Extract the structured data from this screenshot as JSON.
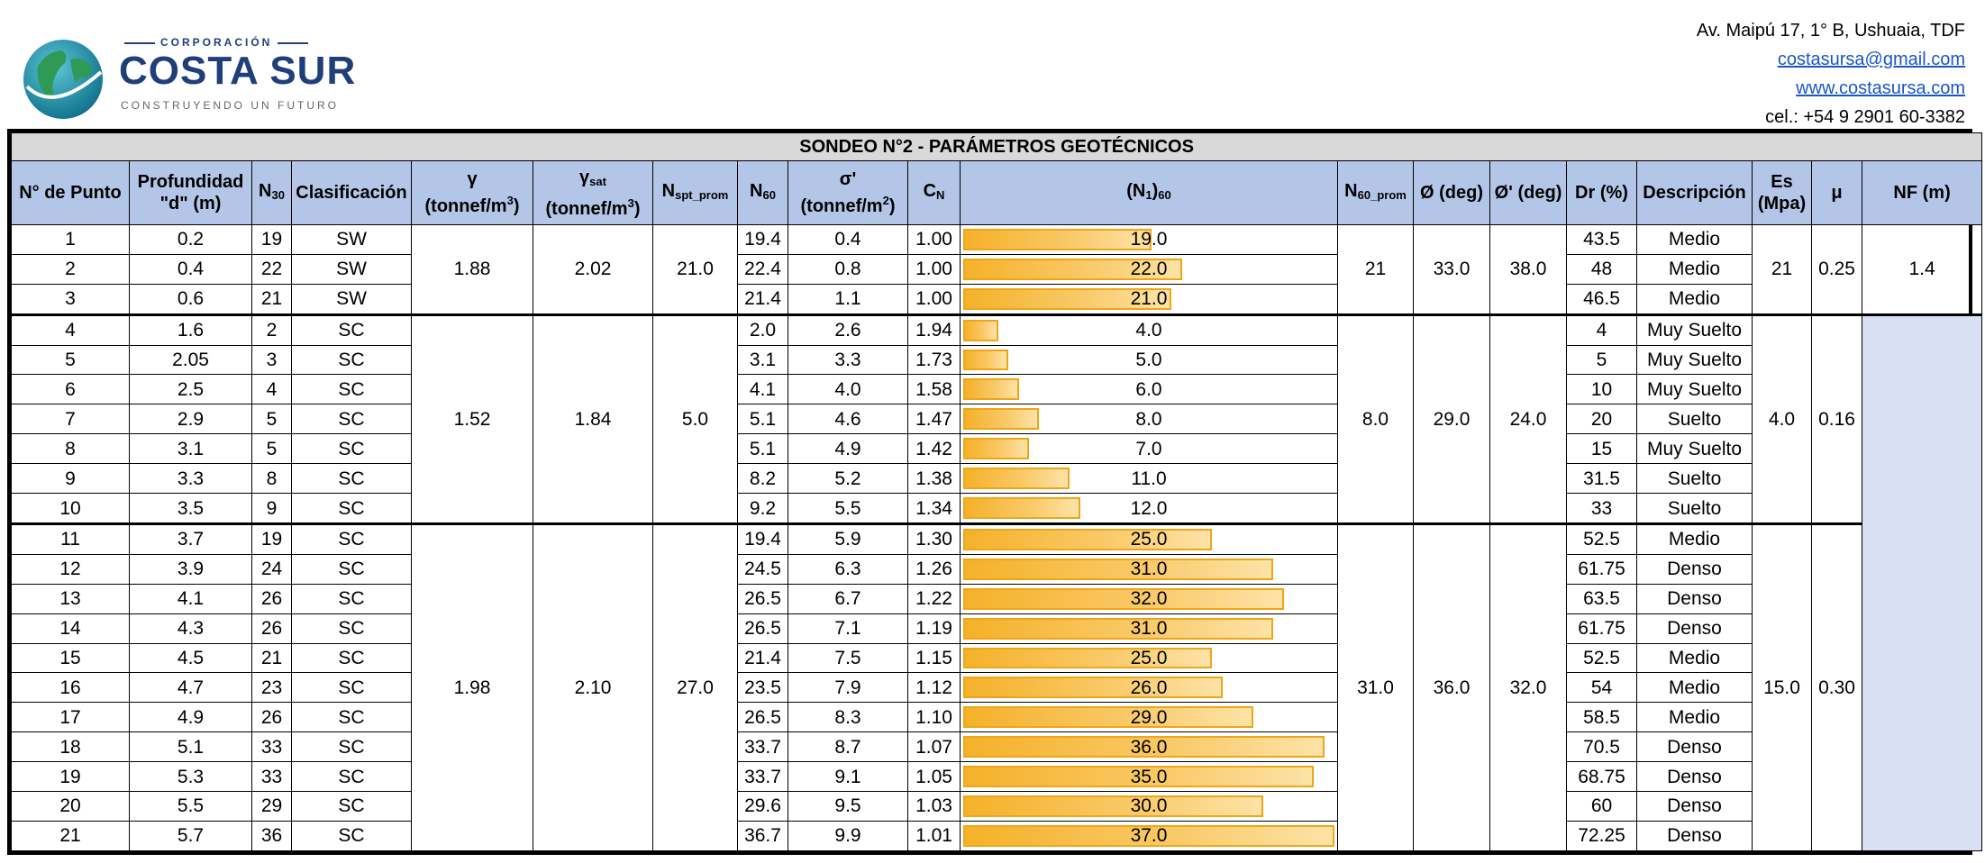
{
  "header": {
    "logo_small": "CORPORACIÓN",
    "logo_big": "COSTA SUR",
    "logo_tag": "CONSTRUYENDO UN FUTURO",
    "address": "Av. Maipú 17, 1° B, Ushuaia, TDF",
    "email": "costasursa@gmail.com",
    "web": "www.costasursa.com",
    "phone": "cel.: +54 9 2901 60-3382"
  },
  "colors": {
    "header_bg": "#b4c6e7",
    "title_bg": "#d9d9d9",
    "bar": "#f5b129",
    "nf_fill": "#d9e0f3",
    "brand": "#1f3f78"
  },
  "table": {
    "title": "SONDEO N°2 - PARÁMETROS GEOTÉCNICOS",
    "headers": {
      "punto": "N° de Punto",
      "prof_1": "Profundidad",
      "prof_2": "\"d\" (m)",
      "n30": "N",
      "n30_sub": "30",
      "clasif": "Clasificación",
      "gamma_1": "γ",
      "gamma_2": "(tonnef/m",
      "gamma_sup": "3",
      "gsat_1": "γ",
      "gsat_sub": "sat",
      "gsat_2": "(tonnef/m",
      "gsat_sup": "3",
      "nspt": "N",
      "nspt_sub": "spt_prom",
      "n60": "N",
      "n60_sub": "60",
      "sigma_1": "σ'",
      "sigma_2": "(tonnef/m",
      "sigma_sup": "2",
      "cn": "C",
      "cn_sub": "N",
      "n160": "(N",
      "n160_sub1": "1",
      "n160_mid": ")",
      "n160_sub2": "60",
      "n60prom": "N",
      "n60prom_sub": "60_prom",
      "phi": "Ø (deg)",
      "phip": "Ø' (deg)",
      "dr": "Dr (%)",
      "desc": "Descripción",
      "es_1": "Es",
      "es_2": "(Mpa)",
      "mu": "μ",
      "nf": "NF (m)"
    },
    "rows": [
      {
        "punto": "1",
        "prof": "0.2",
        "n30": "19",
        "clas": "SW",
        "n60": "19.4",
        "sigma": "0.4",
        "cn": "1.00",
        "n160": "19.0",
        "dr": "43.5",
        "desc": "Medio"
      },
      {
        "punto": "2",
        "prof": "0.4",
        "n30": "22",
        "clas": "SW",
        "n60": "22.4",
        "sigma": "0.8",
        "cn": "1.00",
        "n160": "22.0",
        "dr": "48",
        "desc": "Medio"
      },
      {
        "punto": "3",
        "prof": "0.6",
        "n30": "21",
        "clas": "SW",
        "n60": "21.4",
        "sigma": "1.1",
        "cn": "1.00",
        "n160": "21.0",
        "dr": "46.5",
        "desc": "Medio"
      },
      {
        "punto": "4",
        "prof": "1.6",
        "n30": "2",
        "clas": "SC",
        "n60": "2.0",
        "sigma": "2.6",
        "cn": "1.94",
        "n160": "4.0",
        "dr": "4",
        "desc": "Muy Suelto"
      },
      {
        "punto": "5",
        "prof": "2.05",
        "n30": "3",
        "clas": "SC",
        "n60": "3.1",
        "sigma": "3.3",
        "cn": "1.73",
        "n160": "5.0",
        "dr": "5",
        "desc": "Muy Suelto"
      },
      {
        "punto": "6",
        "prof": "2.5",
        "n30": "4",
        "clas": "SC",
        "n60": "4.1",
        "sigma": "4.0",
        "cn": "1.58",
        "n160": "6.0",
        "dr": "10",
        "desc": "Muy Suelto"
      },
      {
        "punto": "7",
        "prof": "2.9",
        "n30": "5",
        "clas": "SC",
        "n60": "5.1",
        "sigma": "4.6",
        "cn": "1.47",
        "n160": "8.0",
        "dr": "20",
        "desc": "Suelto"
      },
      {
        "punto": "8",
        "prof": "3.1",
        "n30": "5",
        "clas": "SC",
        "n60": "5.1",
        "sigma": "4.9",
        "cn": "1.42",
        "n160": "7.0",
        "dr": "15",
        "desc": "Muy Suelto"
      },
      {
        "punto": "9",
        "prof": "3.3",
        "n30": "8",
        "clas": "SC",
        "n60": "8.2",
        "sigma": "5.2",
        "cn": "1.38",
        "n160": "11.0",
        "dr": "31.5",
        "desc": "Suelto"
      },
      {
        "punto": "10",
        "prof": "3.5",
        "n30": "9",
        "clas": "SC",
        "n60": "9.2",
        "sigma": "5.5",
        "cn": "1.34",
        "n160": "12.0",
        "dr": "33",
        "desc": "Suelto"
      },
      {
        "punto": "11",
        "prof": "3.7",
        "n30": "19",
        "clas": "SC",
        "n60": "19.4",
        "sigma": "5.9",
        "cn": "1.30",
        "n160": "25.0",
        "dr": "52.5",
        "desc": "Medio"
      },
      {
        "punto": "12",
        "prof": "3.9",
        "n30": "24",
        "clas": "SC",
        "n60": "24.5",
        "sigma": "6.3",
        "cn": "1.26",
        "n160": "31.0",
        "dr": "61.75",
        "desc": "Denso"
      },
      {
        "punto": "13",
        "prof": "4.1",
        "n30": "26",
        "clas": "SC",
        "n60": "26.5",
        "sigma": "6.7",
        "cn": "1.22",
        "n160": "32.0",
        "dr": "63.5",
        "desc": "Denso"
      },
      {
        "punto": "14",
        "prof": "4.3",
        "n30": "26",
        "clas": "SC",
        "n60": "26.5",
        "sigma": "7.1",
        "cn": "1.19",
        "n160": "31.0",
        "dr": "61.75",
        "desc": "Denso"
      },
      {
        "punto": "15",
        "prof": "4.5",
        "n30": "21",
        "clas": "SC",
        "n60": "21.4",
        "sigma": "7.5",
        "cn": "1.15",
        "n160": "25.0",
        "dr": "52.5",
        "desc": "Medio"
      },
      {
        "punto": "16",
        "prof": "4.7",
        "n30": "23",
        "clas": "SC",
        "n60": "23.5",
        "sigma": "7.9",
        "cn": "1.12",
        "n160": "26.0",
        "dr": "54",
        "desc": "Medio"
      },
      {
        "punto": "17",
        "prof": "4.9",
        "n30": "26",
        "clas": "SC",
        "n60": "26.5",
        "sigma": "8.3",
        "cn": "1.10",
        "n160": "29.0",
        "dr": "58.5",
        "desc": "Medio"
      },
      {
        "punto": "18",
        "prof": "5.1",
        "n30": "33",
        "clas": "SC",
        "n60": "33.7",
        "sigma": "8.7",
        "cn": "1.07",
        "n160": "36.0",
        "dr": "70.5",
        "desc": "Denso"
      },
      {
        "punto": "19",
        "prof": "5.3",
        "n30": "33",
        "clas": "SC",
        "n60": "33.7",
        "sigma": "9.1",
        "cn": "1.05",
        "n160": "35.0",
        "dr": "68.75",
        "desc": "Denso"
      },
      {
        "punto": "20",
        "prof": "5.5",
        "n30": "29",
        "clas": "SC",
        "n60": "29.6",
        "sigma": "9.5",
        "cn": "1.03",
        "n160": "30.0",
        "dr": "60",
        "desc": "Denso"
      },
      {
        "punto": "21",
        "prof": "5.7",
        "n30": "36",
        "clas": "SC",
        "n60": "36.7",
        "sigma": "9.9",
        "cn": "1.01",
        "n160": "37.0",
        "dr": "72.25",
        "desc": "Denso"
      }
    ],
    "groups": [
      {
        "start": 0,
        "span": 3,
        "gamma": "1.88",
        "gsat": "2.02",
        "nspt": "21.0",
        "n60prom": "21",
        "phi": "33.0",
        "phip": "38.0"
      },
      {
        "start": 3,
        "span": 7,
        "gamma": "1.52",
        "gsat": "1.84",
        "nspt": "5.0",
        "n60prom": "8.0",
        "phi": "29.0",
        "phip": "24.0"
      },
      {
        "start": 10,
        "span": 11,
        "gamma": "1.98",
        "gsat": "2.10",
        "nspt": "27.0",
        "n60prom": "31.0",
        "phi": "36.0",
        "phip": "32.0"
      }
    ],
    "es_groups": [
      {
        "start": 0,
        "span": 3,
        "es": "21",
        "mu": "0.25"
      },
      {
        "start": 3,
        "span": 7,
        "es": "4.0",
        "mu": "0.16"
      },
      {
        "start": 10,
        "span": 11,
        "es": "15.0",
        "mu": "0.30"
      }
    ],
    "nf": {
      "value": "1.4"
    },
    "bar_max": 37.0
  }
}
